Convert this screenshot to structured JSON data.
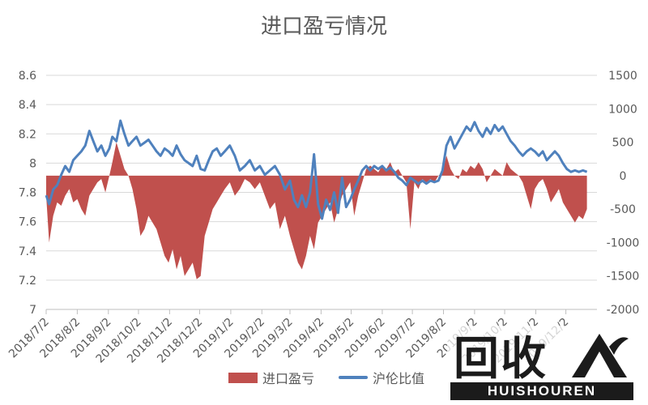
{
  "chart_data": {
    "type": "area+line",
    "title": "进口盈亏情况",
    "x_categories": [
      "2018/7/2",
      "2018/8/2",
      "2018/9/2",
      "2018/10/2",
      "2018/11/2",
      "2018/12/2",
      "2019/1/2",
      "2019/2/2",
      "2019/3/2",
      "2019/4/2",
      "2019/5/2",
      "2019/6/2",
      "2019/7/2",
      "2019/8/2",
      "2019/9/2",
      "2019/10/2",
      "2019/11/2",
      "2019/12/2"
    ],
    "y_left": {
      "ticks": [
        "8.6",
        "8.4",
        "8.2",
        "8",
        "7.8",
        "7.6",
        "7.4",
        "7.2",
        "7"
      ],
      "min": 7,
      "max": 8.6
    },
    "y_right": {
      "ticks": [
        "1500",
        "1000",
        "500",
        "0",
        "-500",
        "-1000",
        "-1500",
        "-2000"
      ],
      "min": -2000,
      "max": 1500
    },
    "series": [
      {
        "name": "进口盈亏",
        "kind": "area",
        "axis": "right",
        "color": "#C0504D",
        "points": [
          [
            "2018/7/2",
            -300
          ],
          [
            "2018/7/5",
            -1000
          ],
          [
            "2018/7/9",
            -600
          ],
          [
            "2018/7/13",
            -400
          ],
          [
            "2018/7/17",
            -450
          ],
          [
            "2018/7/21",
            -300
          ],
          [
            "2018/7/25",
            -200
          ],
          [
            "2018/7/29",
            -400
          ],
          [
            "2018/8/2",
            -350
          ],
          [
            "2018/8/6",
            -500
          ],
          [
            "2018/8/10",
            -600
          ],
          [
            "2018/8/14",
            -300
          ],
          [
            "2018/8/18",
            -200
          ],
          [
            "2018/8/22",
            -100
          ],
          [
            "2018/8/26",
            -50
          ],
          [
            "2018/8/30",
            -250
          ],
          [
            "2018/9/3",
            0
          ],
          [
            "2018/9/6",
            200
          ],
          [
            "2018/9/10",
            500
          ],
          [
            "2018/9/14",
            300
          ],
          [
            "2018/9/18",
            100
          ],
          [
            "2018/9/22",
            0
          ],
          [
            "2018/9/26",
            -200
          ],
          [
            "2018/9/30",
            -500
          ],
          [
            "2018/10/4",
            -900
          ],
          [
            "2018/10/8",
            -800
          ],
          [
            "2018/10/12",
            -600
          ],
          [
            "2018/10/16",
            -700
          ],
          [
            "2018/10/20",
            -800
          ],
          [
            "2018/10/24",
            -1000
          ],
          [
            "2018/10/28",
            -1200
          ],
          [
            "2018/11/1",
            -1300
          ],
          [
            "2018/11/5",
            -1100
          ],
          [
            "2018/11/9",
            -1400
          ],
          [
            "2018/11/13",
            -1200
          ],
          [
            "2018/11/17",
            -1500
          ],
          [
            "2018/11/21",
            -1400
          ],
          [
            "2018/11/25",
            -1300
          ],
          [
            "2018/11/29",
            -1550
          ],
          [
            "2018/12/3",
            -1500
          ],
          [
            "2018/12/7",
            -900
          ],
          [
            "2018/12/11",
            -700
          ],
          [
            "2018/12/15",
            -500
          ],
          [
            "2018/12/19",
            -400
          ],
          [
            "2018/12/23",
            -300
          ],
          [
            "2018/12/27",
            -200
          ],
          [
            "2019/1/1",
            -100
          ],
          [
            "2019/1/6",
            -300
          ],
          [
            "2019/1/11",
            -200
          ],
          [
            "2019/1/16",
            -50
          ],
          [
            "2019/1/21",
            -100
          ],
          [
            "2019/1/26",
            -200
          ],
          [
            "2019/1/31",
            -100
          ],
          [
            "2019/2/5",
            -300
          ],
          [
            "2019/2/10",
            -500
          ],
          [
            "2019/2/15",
            -400
          ],
          [
            "2019/2/20",
            -800
          ],
          [
            "2019/2/25",
            -600
          ],
          [
            "2019/3/2",
            -900
          ],
          [
            "2019/3/6",
            -1100
          ],
          [
            "2019/3/10",
            -1300
          ],
          [
            "2019/3/14",
            -1400
          ],
          [
            "2019/3/18",
            -1200
          ],
          [
            "2019/3/22",
            -900
          ],
          [
            "2019/3/26",
            -1100
          ],
          [
            "2019/3/30",
            -700
          ],
          [
            "2019/4/3",
            -600
          ],
          [
            "2019/4/7",
            -500
          ],
          [
            "2019/4/11",
            -400
          ],
          [
            "2019/4/15",
            -700
          ],
          [
            "2019/4/19",
            -500
          ],
          [
            "2019/4/23",
            -300
          ],
          [
            "2019/4/27",
            -200
          ],
          [
            "2019/5/1",
            -100
          ],
          [
            "2019/5/5",
            -600
          ],
          [
            "2019/5/9",
            -300
          ],
          [
            "2019/5/13",
            -100
          ],
          [
            "2019/5/17",
            100
          ],
          [
            "2019/5/21",
            150
          ],
          [
            "2019/5/25",
            100
          ],
          [
            "2019/5/29",
            50
          ],
          [
            "2019/6/2",
            150
          ],
          [
            "2019/6/6",
            100
          ],
          [
            "2019/6/10",
            200
          ],
          [
            "2019/6/14",
            50
          ],
          [
            "2019/6/18",
            100
          ],
          [
            "2019/6/22",
            0
          ],
          [
            "2019/6/26",
            -100
          ],
          [
            "2019/6/30",
            -800
          ],
          [
            "2019/7/4",
            -100
          ],
          [
            "2019/7/8",
            -200
          ],
          [
            "2019/7/12",
            -50
          ],
          [
            "2019/7/16",
            -100
          ],
          [
            "2019/7/20",
            -50
          ],
          [
            "2019/7/24",
            -100
          ],
          [
            "2019/7/28",
            0
          ],
          [
            "2019/8/1",
            50
          ],
          [
            "2019/8/5",
            300
          ],
          [
            "2019/8/9",
            100
          ],
          [
            "2019/8/13",
            0
          ],
          [
            "2019/8/17",
            -50
          ],
          [
            "2019/8/21",
            100
          ],
          [
            "2019/8/25",
            50
          ],
          [
            "2019/8/29",
            150
          ],
          [
            "2019/9/2",
            100
          ],
          [
            "2019/9/6",
            200
          ],
          [
            "2019/9/10",
            100
          ],
          [
            "2019/9/14",
            -100
          ],
          [
            "2019/9/18",
            0
          ],
          [
            "2019/9/22",
            100
          ],
          [
            "2019/9/26",
            50
          ],
          [
            "2019/9/30",
            0
          ],
          [
            "2019/10/4",
            200
          ],
          [
            "2019/10/8",
            100
          ],
          [
            "2019/10/12",
            50
          ],
          [
            "2019/10/16",
            0
          ],
          [
            "2019/10/20",
            -100
          ],
          [
            "2019/10/24",
            -300
          ],
          [
            "2019/10/28",
            -500
          ],
          [
            "2019/11/1",
            -200
          ],
          [
            "2019/11/5",
            -100
          ],
          [
            "2019/11/9",
            -50
          ],
          [
            "2019/11/13",
            -200
          ],
          [
            "2019/11/17",
            -400
          ],
          [
            "2019/11/21",
            -300
          ],
          [
            "2019/11/25",
            -200
          ],
          [
            "2019/11/29",
            -400
          ],
          [
            "2019/12/3",
            -500
          ],
          [
            "2019/12/7",
            -600
          ],
          [
            "2019/12/11",
            -700
          ],
          [
            "2019/12/15",
            -600
          ],
          [
            "2019/12/19",
            -650
          ],
          [
            "2019/12/23",
            -500
          ]
        ]
      },
      {
        "name": "沪伦比值",
        "kind": "line",
        "axis": "left",
        "color": "#4F81BD",
        "points": [
          [
            "2018/7/2",
            7.78
          ],
          [
            "2018/7/5",
            7.72
          ],
          [
            "2018/7/9",
            7.82
          ],
          [
            "2018/7/13",
            7.85
          ],
          [
            "2018/7/17",
            7.92
          ],
          [
            "2018/7/21",
            7.98
          ],
          [
            "2018/7/25",
            7.94
          ],
          [
            "2018/7/29",
            8.02
          ],
          [
            "2018/8/2",
            8.05
          ],
          [
            "2018/8/6",
            8.08
          ],
          [
            "2018/8/10",
            8.12
          ],
          [
            "2018/8/14",
            8.22
          ],
          [
            "2018/8/18",
            8.15
          ],
          [
            "2018/8/22",
            8.08
          ],
          [
            "2018/8/26",
            8.12
          ],
          [
            "2018/8/30",
            8.05
          ],
          [
            "2018/9/3",
            8.1
          ],
          [
            "2018/9/6",
            8.18
          ],
          [
            "2018/9/10",
            8.15
          ],
          [
            "2018/9/14",
            8.29
          ],
          [
            "2018/9/18",
            8.2
          ],
          [
            "2018/9/22",
            8.12
          ],
          [
            "2018/9/26",
            8.15
          ],
          [
            "2018/9/30",
            8.18
          ],
          [
            "2018/10/4",
            8.12
          ],
          [
            "2018/10/8",
            8.14
          ],
          [
            "2018/10/12",
            8.16
          ],
          [
            "2018/10/16",
            8.12
          ],
          [
            "2018/10/20",
            8.08
          ],
          [
            "2018/10/24",
            8.05
          ],
          [
            "2018/10/28",
            8.1
          ],
          [
            "2018/11/1",
            8.08
          ],
          [
            "2018/11/5",
            8.05
          ],
          [
            "2018/11/9",
            8.12
          ],
          [
            "2018/11/13",
            8.06
          ],
          [
            "2018/11/17",
            8.02
          ],
          [
            "2018/11/21",
            8.0
          ],
          [
            "2018/11/25",
            7.98
          ],
          [
            "2018/11/29",
            8.05
          ],
          [
            "2018/12/3",
            7.96
          ],
          [
            "2018/12/7",
            7.95
          ],
          [
            "2018/12/11",
            8.02
          ],
          [
            "2018/12/15",
            8.08
          ],
          [
            "2018/12/19",
            8.1
          ],
          [
            "2018/12/23",
            8.05
          ],
          [
            "2018/12/27",
            8.08
          ],
          [
            "2019/1/1",
            8.12
          ],
          [
            "2019/1/6",
            8.05
          ],
          [
            "2019/1/11",
            7.95
          ],
          [
            "2019/1/16",
            7.98
          ],
          [
            "2019/1/21",
            8.02
          ],
          [
            "2019/1/26",
            7.95
          ],
          [
            "2019/1/31",
            7.98
          ],
          [
            "2019/2/5",
            7.92
          ],
          [
            "2019/2/10",
            7.95
          ],
          [
            "2019/2/15",
            7.98
          ],
          [
            "2019/2/20",
            7.92
          ],
          [
            "2019/2/25",
            7.82
          ],
          [
            "2019/3/2",
            7.88
          ],
          [
            "2019/3/6",
            7.75
          ],
          [
            "2019/3/10",
            7.7
          ],
          [
            "2019/3/14",
            7.78
          ],
          [
            "2019/3/18",
            7.7
          ],
          [
            "2019/3/22",
            7.8
          ],
          [
            "2019/3/26",
            8.06
          ],
          [
            "2019/3/30",
            7.72
          ],
          [
            "2019/4/3",
            7.62
          ],
          [
            "2019/4/7",
            7.75
          ],
          [
            "2019/4/11",
            7.68
          ],
          [
            "2019/4/15",
            7.8
          ],
          [
            "2019/4/19",
            7.66
          ],
          [
            "2019/4/23",
            7.9
          ],
          [
            "2019/4/27",
            7.7
          ],
          [
            "2019/5/1",
            7.75
          ],
          [
            "2019/5/5",
            7.82
          ],
          [
            "2019/5/9",
            7.88
          ],
          [
            "2019/5/13",
            7.95
          ],
          [
            "2019/5/17",
            7.98
          ],
          [
            "2019/5/21",
            7.95
          ],
          [
            "2019/5/25",
            7.98
          ],
          [
            "2019/5/29",
            7.96
          ],
          [
            "2019/6/2",
            7.98
          ],
          [
            "2019/6/6",
            7.95
          ],
          [
            "2019/6/10",
            7.97
          ],
          [
            "2019/6/14",
            7.94
          ],
          [
            "2019/6/18",
            7.9
          ],
          [
            "2019/6/22",
            7.88
          ],
          [
            "2019/6/26",
            7.85
          ],
          [
            "2019/6/30",
            7.9
          ],
          [
            "2019/7/4",
            7.88
          ],
          [
            "2019/7/8",
            7.86
          ],
          [
            "2019/7/12",
            7.88
          ],
          [
            "2019/7/16",
            7.86
          ],
          [
            "2019/7/20",
            7.88
          ],
          [
            "2019/7/24",
            7.87
          ],
          [
            "2019/7/28",
            7.88
          ],
          [
            "2019/8/1",
            7.95
          ],
          [
            "2019/8/5",
            8.12
          ],
          [
            "2019/8/9",
            8.18
          ],
          [
            "2019/8/13",
            8.1
          ],
          [
            "2019/8/17",
            8.15
          ],
          [
            "2019/8/21",
            8.2
          ],
          [
            "2019/8/25",
            8.25
          ],
          [
            "2019/8/29",
            8.22
          ],
          [
            "2019/9/2",
            8.28
          ],
          [
            "2019/9/6",
            8.22
          ],
          [
            "2019/9/10",
            8.18
          ],
          [
            "2019/9/14",
            8.24
          ],
          [
            "2019/9/18",
            8.2
          ],
          [
            "2019/9/22",
            8.26
          ],
          [
            "2019/9/26",
            8.22
          ],
          [
            "2019/9/30",
            8.25
          ],
          [
            "2019/10/4",
            8.2
          ],
          [
            "2019/10/8",
            8.15
          ],
          [
            "2019/10/12",
            8.12
          ],
          [
            "2019/10/16",
            8.08
          ],
          [
            "2019/10/20",
            8.05
          ],
          [
            "2019/10/24",
            8.08
          ],
          [
            "2019/10/28",
            8.1
          ],
          [
            "2019/11/1",
            8.08
          ],
          [
            "2019/11/5",
            8.05
          ],
          [
            "2019/11/9",
            8.08
          ],
          [
            "2019/11/13",
            8.02
          ],
          [
            "2019/11/17",
            8.05
          ],
          [
            "2019/11/21",
            8.08
          ],
          [
            "2019/11/25",
            8.05
          ],
          [
            "2019/11/29",
            8.0
          ],
          [
            "2019/12/3",
            7.96
          ],
          [
            "2019/12/7",
            7.94
          ],
          [
            "2019/12/11",
            7.95
          ],
          [
            "2019/12/15",
            7.94
          ],
          [
            "2019/12/19",
            7.95
          ],
          [
            "2019/12/23",
            7.94
          ]
        ]
      }
    ],
    "legend_position": "bottom",
    "grid": true
  },
  "title": "进口盈亏情况",
  "legend": {
    "area_label": "进口盈亏",
    "line_label": "沪伦比值"
  },
  "watermark": {
    "cn": "回收",
    "en": "HUISHOUREN"
  }
}
